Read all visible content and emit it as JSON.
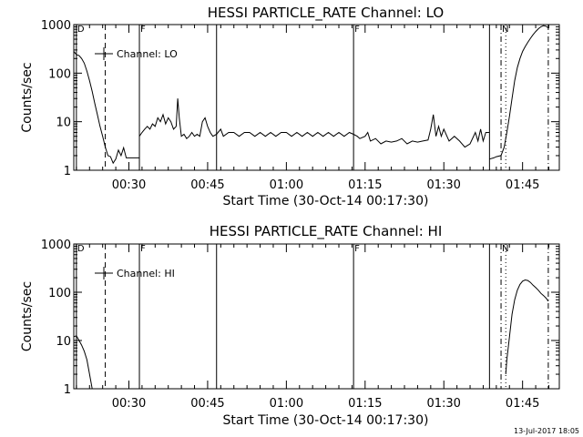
{
  "chart_data": [
    {
      "type": "line",
      "title": "HESSI PARTICLE_RATE Channel: LO",
      "xlabel": "Start Time (30-Oct-14 00:17:30)",
      "ylabel": "Counts/sec",
      "yscale": "log",
      "ylim": [
        1,
        1000
      ],
      "xlim_minutes": [
        19.5,
        112
      ],
      "xticks": [
        {
          "label": "00:30",
          "value": 30
        },
        {
          "label": "00:45",
          "value": 45
        },
        {
          "label": "01:00",
          "value": 60
        },
        {
          "label": "01:15",
          "value": 75
        },
        {
          "label": "01:30",
          "value": 90
        },
        {
          "label": "01:45",
          "value": 105
        }
      ],
      "yticks": [
        {
          "label": "1",
          "value": 1
        },
        {
          "label": "10",
          "value": 10
        },
        {
          "label": "100",
          "value": 100
        },
        {
          "label": "1000",
          "value": 1000
        }
      ],
      "legend": {
        "entry": "Channel: LO",
        "placement": "top-left"
      },
      "markers": [
        {
          "minute": 20,
          "style": "solid",
          "label": "D"
        },
        {
          "minute": 25.5,
          "style": "dashed",
          "label": ""
        },
        {
          "minute": 32,
          "style": "solid",
          "label": "F"
        },
        {
          "minute": 46.7,
          "style": "solid",
          "label": ""
        },
        {
          "minute": 72.8,
          "style": "solid",
          "label": "F"
        },
        {
          "minute": 98.7,
          "style": "solid",
          "label": ""
        },
        {
          "minute": 100.9,
          "style": "dashdot",
          "label": "N"
        },
        {
          "minute": 101.8,
          "style": "dotted",
          "label": ""
        },
        {
          "minute": 109.9,
          "style": "dashdot",
          "label": ""
        }
      ],
      "series": [
        {
          "name": "Channel: LO",
          "segments": [
            [
              [
                19.5,
                280
              ],
              [
                20,
                240
              ],
              [
                20.5,
                230
              ],
              [
                21,
                200
              ],
              [
                21.5,
                160
              ],
              [
                22,
                110
              ],
              [
                22.5,
                70
              ],
              [
                23,
                42
              ],
              [
                23.5,
                24
              ],
              [
                24,
                14
              ],
              [
                24.5,
                8
              ],
              [
                25,
                5
              ],
              [
                25.5,
                3
              ],
              [
                26,
                2
              ],
              [
                26.5,
                1.9
              ],
              [
                27,
                1.4
              ],
              [
                27.5,
                1.7
              ],
              [
                28,
                2.6
              ],
              [
                28.5,
                2
              ],
              [
                29,
                2.9
              ],
              [
                29.5,
                1.8
              ],
              [
                30,
                1.8
              ],
              [
                30.5,
                1.8
              ],
              [
                31,
                1.8
              ],
              [
                32,
                1.8
              ]
            ],
            [
              [
                32,
                5
              ],
              [
                32.5,
                6
              ],
              [
                33,
                7
              ],
              [
                33.5,
                8
              ],
              [
                34,
                7
              ],
              [
                34.5,
                9
              ],
              [
                35,
                8
              ],
              [
                35.5,
                12
              ],
              [
                36,
                10
              ],
              [
                36.5,
                14
              ],
              [
                37,
                9
              ],
              [
                37.5,
                12
              ],
              [
                38,
                10
              ],
              [
                38.5,
                7
              ],
              [
                39,
                8
              ],
              [
                39.3,
                30
              ],
              [
                39.6,
                12
              ],
              [
                40,
                5
              ],
              [
                40.5,
                5.5
              ],
              [
                41,
                4.5
              ],
              [
                41.5,
                5
              ],
              [
                42,
                6
              ],
              [
                42.5,
                5
              ],
              [
                43,
                5.5
              ],
              [
                43.5,
                5
              ],
              [
                44,
                10
              ],
              [
                44.5,
                12
              ],
              [
                45,
                8
              ],
              [
                45.5,
                6
              ],
              [
                46,
                5
              ],
              [
                46.7,
                5.5
              ]
            ],
            [
              [
                46.7,
                5.5
              ],
              [
                47.5,
                7
              ],
              [
                48,
                5
              ],
              [
                49,
                6
              ],
              [
                50,
                6
              ],
              [
                51,
                5
              ],
              [
                52,
                6
              ],
              [
                53,
                6
              ],
              [
                54,
                5
              ],
              [
                55,
                6
              ],
              [
                56,
                5
              ],
              [
                57,
                6
              ],
              [
                58,
                5
              ],
              [
                59,
                6
              ],
              [
                60,
                6
              ],
              [
                61,
                5
              ],
              [
                62,
                6
              ],
              [
                63,
                5
              ],
              [
                64,
                6
              ],
              [
                65,
                5
              ],
              [
                66,
                6
              ],
              [
                67,
                5
              ],
              [
                68,
                6
              ],
              [
                69,
                5
              ],
              [
                70,
                6
              ],
              [
                71,
                5
              ],
              [
                72,
                6
              ],
              [
                72.8,
                5.5
              ]
            ],
            [
              [
                72.8,
                5.5
              ],
              [
                73.5,
                5
              ],
              [
                74,
                4.5
              ],
              [
                75,
                5
              ],
              [
                75.5,
                6
              ],
              [
                76,
                4
              ],
              [
                77,
                4.5
              ],
              [
                78,
                3.5
              ],
              [
                79,
                4
              ],
              [
                80,
                3.8
              ],
              [
                81,
                4
              ],
              [
                82,
                4.5
              ],
              [
                83,
                3.5
              ],
              [
                84,
                4
              ],
              [
                85,
                3.8
              ],
              [
                86,
                4
              ],
              [
                87,
                4.2
              ],
              [
                87.5,
                7
              ],
              [
                88,
                14
              ],
              [
                88.5,
                5
              ],
              [
                89,
                8
              ],
              [
                89.5,
                5
              ],
              [
                90,
                7
              ],
              [
                91,
                4
              ],
              [
                92,
                5
              ],
              [
                93,
                4
              ],
              [
                94,
                3
              ],
              [
                95,
                3.5
              ],
              [
                96,
                6
              ],
              [
                96.5,
                4
              ],
              [
                97,
                7
              ],
              [
                97.5,
                4
              ],
              [
                98,
                6
              ],
              [
                98.7,
                6
              ]
            ],
            [
              [
                98.7,
                1.7
              ],
              [
                99.5,
                1.8
              ],
              [
                100,
                1.9
              ],
              [
                100.9,
                2
              ],
              [
                101.5,
                3
              ],
              [
                102,
                6
              ],
              [
                102.5,
                13
              ],
              [
                103,
                30
              ],
              [
                103.5,
                70
              ],
              [
                104,
                130
              ],
              [
                104.5,
                200
              ],
              [
                105,
                280
              ],
              [
                105.5,
                350
              ],
              [
                106,
                430
              ],
              [
                106.5,
                520
              ],
              [
                107,
                620
              ],
              [
                107.5,
                720
              ],
              [
                108,
                820
              ],
              [
                108.5,
                900
              ],
              [
                109,
                950
              ],
              [
                109.5,
                920
              ],
              [
                109.9,
                850
              ]
            ]
          ]
        }
      ]
    },
    {
      "type": "line",
      "title": "HESSI PARTICLE_RATE Channel: HI",
      "xlabel": "Start Time (30-Oct-14 00:17:30)",
      "ylabel": "Counts/sec",
      "yscale": "log",
      "ylim": [
        1,
        1000
      ],
      "xlim_minutes": [
        19.5,
        112
      ],
      "xticks": [
        {
          "label": "00:30",
          "value": 30
        },
        {
          "label": "00:45",
          "value": 45
        },
        {
          "label": "01:00",
          "value": 60
        },
        {
          "label": "01:15",
          "value": 75
        },
        {
          "label": "01:30",
          "value": 90
        },
        {
          "label": "01:45",
          "value": 105
        }
      ],
      "yticks": [
        {
          "label": "1",
          "value": 1
        },
        {
          "label": "10",
          "value": 10
        },
        {
          "label": "100",
          "value": 100
        },
        {
          "label": "1000",
          "value": 1000
        }
      ],
      "legend": {
        "entry": "Channel: HI",
        "placement": "top-left"
      },
      "markers": [
        {
          "minute": 20,
          "style": "solid",
          "label": "D"
        },
        {
          "minute": 25.5,
          "style": "dashed",
          "label": ""
        },
        {
          "minute": 32,
          "style": "solid",
          "label": "F"
        },
        {
          "minute": 46.7,
          "style": "solid",
          "label": ""
        },
        {
          "minute": 72.8,
          "style": "solid",
          "label": "F"
        },
        {
          "minute": 98.7,
          "style": "solid",
          "label": ""
        },
        {
          "minute": 100.9,
          "style": "dashdot",
          "label": "N"
        },
        {
          "minute": 101.8,
          "style": "dotted",
          "label": ""
        },
        {
          "minute": 109.9,
          "style": "dashdot",
          "label": ""
        }
      ],
      "series": [
        {
          "name": "Channel: HI",
          "segments": [
            [
              [
                19.5,
                12
              ],
              [
                20,
                12.5
              ],
              [
                20.5,
                10
              ],
              [
                21,
                8
              ],
              [
                21.5,
                6
              ],
              [
                22,
                4
              ],
              [
                22.5,
                2
              ],
              [
                23,
                1
              ]
            ],
            [
              [
                101.8,
                2
              ],
              [
                102,
                4
              ],
              [
                102.5,
                12
              ],
              [
                103,
                35
              ],
              [
                103.5,
                70
              ],
              [
                104,
                110
              ],
              [
                104.5,
                145
              ],
              [
                105,
                170
              ],
              [
                105.5,
                180
              ],
              [
                106,
                175
              ],
              [
                106.5,
                160
              ],
              [
                107,
                140
              ],
              [
                107.5,
                125
              ],
              [
                108,
                110
              ],
              [
                108.5,
                95
              ],
              [
                109,
                85
              ],
              [
                109.5,
                75
              ],
              [
                109.9,
                65
              ]
            ]
          ]
        }
      ]
    }
  ],
  "footer": {
    "timestamp": "13-Jul-2017 18:05"
  }
}
